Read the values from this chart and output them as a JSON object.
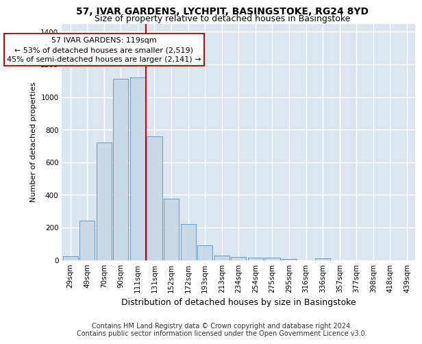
{
  "title": "57, IVAR GARDENS, LYCHPIT, BASINGSTOKE, RG24 8YD",
  "subtitle": "Size of property relative to detached houses in Basingstoke",
  "xlabel": "Distribution of detached houses by size in Basingstoke",
  "ylabel": "Number of detached properties",
  "categories": [
    "29sqm",
    "49sqm",
    "70sqm",
    "90sqm",
    "111sqm",
    "131sqm",
    "152sqm",
    "172sqm",
    "193sqm",
    "213sqm",
    "234sqm",
    "254sqm",
    "275sqm",
    "295sqm",
    "316sqm",
    "336sqm",
    "357sqm",
    "377sqm",
    "398sqm",
    "418sqm",
    "439sqm"
  ],
  "values": [
    25,
    240,
    720,
    1110,
    1120,
    760,
    375,
    220,
    90,
    28,
    20,
    16,
    15,
    8,
    0,
    10,
    0,
    0,
    0,
    0,
    0
  ],
  "bar_color": "#c9d9e8",
  "bar_edge_color": "#5b8db8",
  "vline_x": 4.5,
  "vline_color": "#cc0000",
  "annotation_text": "57 IVAR GARDENS: 119sqm\n← 53% of detached houses are smaller (2,519)\n45% of semi-detached houses are larger (2,141) →",
  "annotation_box_facecolor": "#ffffff",
  "annotation_box_edgecolor": "#cc0000",
  "ylim": [
    0,
    1450
  ],
  "yticks": [
    0,
    200,
    400,
    600,
    800,
    1000,
    1200,
    1400
  ],
  "footer": "Contains HM Land Registry data © Crown copyright and database right 2024.\nContains public sector information licensed under the Open Government Licence v3.0.",
  "plot_bg_color": "#dce6f0",
  "grid_color": "#ffffff",
  "title_fontsize": 10,
  "subtitle_fontsize": 9,
  "xlabel_fontsize": 9,
  "ylabel_fontsize": 8,
  "tick_fontsize": 7.5,
  "footer_fontsize": 7,
  "annotation_fontsize": 8
}
